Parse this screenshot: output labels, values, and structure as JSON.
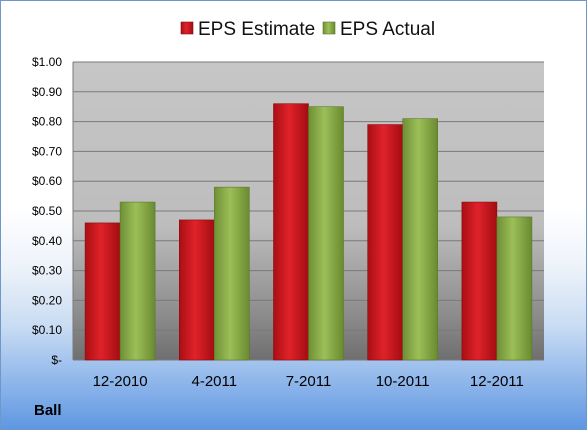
{
  "company": "Ball",
  "colors": {
    "estimate": "#d0161e",
    "actual": "#8fb24c"
  },
  "chart_data": {
    "type": "bar",
    "categories": [
      "12-2010",
      "4-2011",
      "7-2011",
      "10-2011",
      "12-2011"
    ],
    "series": [
      {
        "name": "EPS Estimate",
        "values": [
          0.46,
          0.47,
          0.86,
          0.79,
          0.53
        ]
      },
      {
        "name": "EPS Actual",
        "values": [
          0.53,
          0.58,
          0.85,
          0.81,
          0.48
        ]
      }
    ],
    "ylim": [
      0,
      1.0
    ],
    "yticks": [
      0,
      0.1,
      0.2,
      0.3,
      0.4,
      0.5,
      0.6,
      0.7,
      0.8,
      0.9,
      1.0
    ],
    "ytick_labels": [
      "$-",
      "$0.10",
      "$0.20",
      "$0.30",
      "$0.40",
      "$0.50",
      "$0.60",
      "$0.70",
      "$0.80",
      "$0.90",
      "$1.00"
    ],
    "legend_position": "top",
    "grid": true
  }
}
